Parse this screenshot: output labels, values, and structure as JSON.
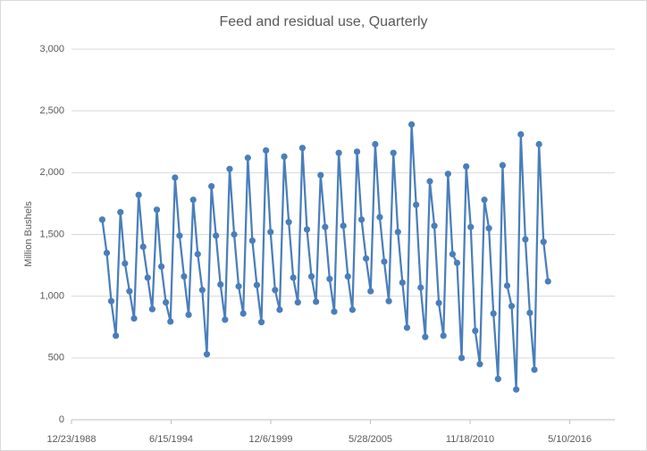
{
  "chart_data": {
    "type": "line",
    "title": "Feed and residual use, Quarterly",
    "y_label": "Million Bushels",
    "series": [
      {
        "name": "Feed and residual use",
        "color": "#4a7ebb",
        "x": [
          "1990-09-01",
          "1990-12-01",
          "1991-03-01",
          "1991-06-01",
          "1991-09-01",
          "1991-12-01",
          "1992-03-01",
          "1992-06-01",
          "1992-09-01",
          "1992-12-01",
          "1993-03-01",
          "1993-06-01",
          "1993-09-01",
          "1993-12-01",
          "1994-03-01",
          "1994-06-01",
          "1994-09-01",
          "1994-12-01",
          "1995-03-01",
          "1995-06-01",
          "1995-09-01",
          "1995-12-01",
          "1996-03-01",
          "1996-06-01",
          "1996-09-01",
          "1996-12-01",
          "1997-03-01",
          "1997-06-01",
          "1997-09-01",
          "1997-12-01",
          "1998-03-01",
          "1998-06-01",
          "1998-09-01",
          "1998-12-01",
          "1999-03-01",
          "1999-06-01",
          "1999-09-01",
          "1999-12-01",
          "2000-03-01",
          "2000-06-01",
          "2000-09-01",
          "2000-12-01",
          "2001-03-01",
          "2001-06-01",
          "2001-09-01",
          "2001-12-01",
          "2002-03-01",
          "2002-06-01",
          "2002-09-01",
          "2002-12-01",
          "2003-03-01",
          "2003-06-01",
          "2003-09-01",
          "2003-12-01",
          "2004-03-01",
          "2004-06-01",
          "2004-09-01",
          "2004-12-01",
          "2005-03-01",
          "2005-06-01",
          "2005-09-01",
          "2005-12-01",
          "2006-03-01",
          "2006-06-01",
          "2006-09-01",
          "2006-12-01",
          "2007-03-01",
          "2007-06-01",
          "2007-09-01",
          "2007-12-01",
          "2008-03-01",
          "2008-06-01",
          "2008-09-01",
          "2008-12-01",
          "2009-03-01",
          "2009-06-01",
          "2009-09-01",
          "2009-12-01",
          "2010-03-01",
          "2010-06-01",
          "2010-09-01",
          "2010-12-01",
          "2011-03-01",
          "2011-06-01",
          "2011-09-01",
          "2011-12-01",
          "2012-03-01",
          "2012-06-01",
          "2012-09-01",
          "2012-12-01",
          "2013-03-01",
          "2013-06-01",
          "2013-09-01",
          "2013-12-01",
          "2014-03-01",
          "2014-06-01",
          "2014-09-01",
          "2014-12-01",
          "2015-03-01"
        ],
        "values": [
          1620,
          1350,
          960,
          680,
          1680,
          1265,
          1040,
          820,
          1820,
          1400,
          1150,
          895,
          1700,
          1240,
          950,
          795,
          1960,
          1490,
          1160,
          850,
          1780,
          1340,
          1050,
          530,
          1890,
          1490,
          1095,
          810,
          2030,
          1500,
          1080,
          860,
          2120,
          1450,
          1090,
          790,
          2180,
          1520,
          1050,
          890,
          2130,
          1600,
          1150,
          950,
          2200,
          1540,
          1160,
          955,
          1980,
          1560,
          1140,
          875,
          2160,
          1570,
          1160,
          890,
          2170,
          1620,
          1305,
          1040,
          2230,
          1640,
          1280,
          960,
          2160,
          1520,
          1110,
          745,
          2390,
          1740,
          1070,
          670,
          1930,
          1570,
          945,
          680,
          1990,
          1340,
          1270,
          500,
          2050,
          1560,
          720,
          450,
          1780,
          1550,
          860,
          330,
          2060,
          1085,
          920,
          245,
          2310,
          1460,
          865,
          405,
          2230,
          1440,
          1120
        ]
      }
    ],
    "xlim": [
      "1988-12-23",
      "2018-11-01"
    ],
    "xticks": [
      {
        "value": "1988-12-23",
        "label": "12/23/1988"
      },
      {
        "value": "1994-06-15",
        "label": "6/15/1994"
      },
      {
        "value": "1999-12-06",
        "label": "12/6/1999"
      },
      {
        "value": "2005-05-28",
        "label": "5/28/2005"
      },
      {
        "value": "2010-11-18",
        "label": "11/18/2010"
      },
      {
        "value": "2016-05-10",
        "label": "5/10/2016"
      }
    ],
    "ylim": [
      0,
      3000
    ],
    "yticks": [
      0,
      {
        "value": 500,
        "label": "500"
      },
      {
        "value": 1000,
        "label": "1,000"
      },
      {
        "value": 1500,
        "label": "1,500"
      },
      {
        "value": 2000,
        "label": "2,000"
      },
      {
        "value": 2500,
        "label": "2,500"
      },
      {
        "value": 3000,
        "label": "3,000"
      }
    ],
    "grid": true
  }
}
